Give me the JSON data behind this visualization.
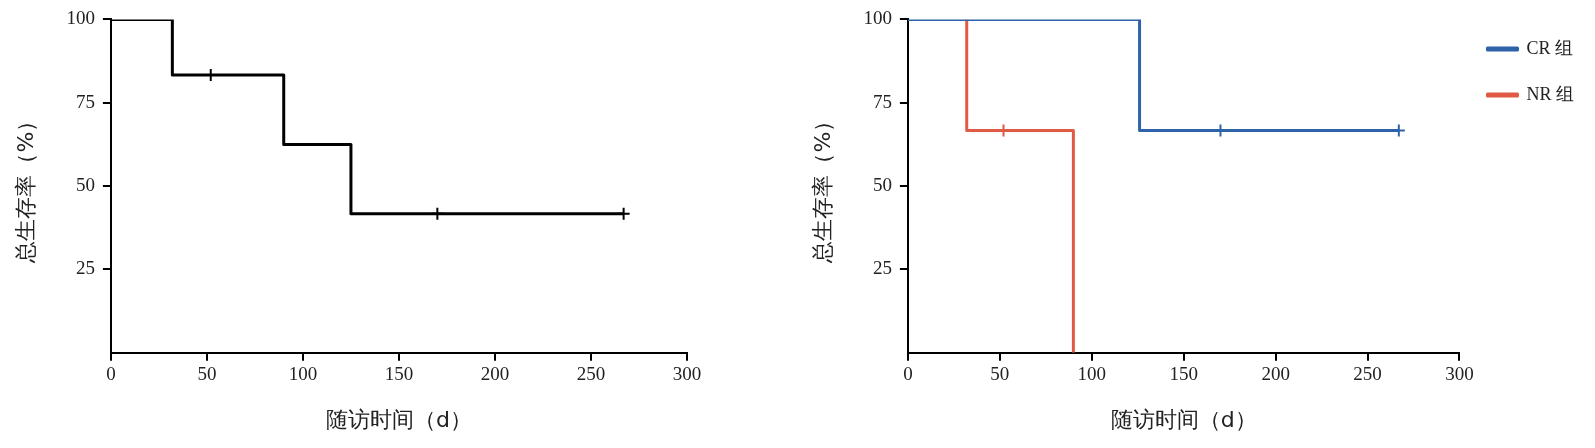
{
  "chart_data": [
    {
      "type": "step",
      "xlabel": "随访时间（d）",
      "ylabel": "总生存率（%）",
      "xlim": [
        0,
        300
      ],
      "xticks": [
        0,
        50,
        100,
        150,
        200,
        250,
        300
      ],
      "ylim": [
        0,
        100
      ],
      "yticks": [
        25,
        50,
        75,
        100
      ],
      "grid": false,
      "legend": false,
      "series": [
        {
          "color": "#000000",
          "x": [
            0,
            32,
            90,
            125,
            267
          ],
          "values": [
            100,
            83.3,
            62.5,
            41.7,
            41.7
          ]
        },
        {
          "type": "scatter",
          "marker": "cross",
          "color": "#000000",
          "x": [
            52,
            170,
            267
          ],
          "values": [
            83.3,
            41.7,
            41.7
          ]
        }
      ]
    },
    {
      "type": "step",
      "xlabel": "随访时间（d）",
      "ylabel": "总生存率（%）",
      "xlim": [
        0,
        300
      ],
      "xticks": [
        0,
        50,
        100,
        150,
        200,
        250,
        300
      ],
      "ylim": [
        0,
        100
      ],
      "yticks": [
        25,
        50,
        75,
        100
      ],
      "grid": false,
      "legend": "top right",
      "series": [
        {
          "name": "CR 组",
          "color": "#2e63a8",
          "x": [
            0,
            126,
            267
          ],
          "values": [
            100,
            66.7,
            66.7
          ]
        },
        {
          "name": "NR 组",
          "color": "#e05a45",
          "x": [
            32,
            32,
            90,
            90
          ],
          "values": [
            100,
            66.7,
            0,
            0
          ]
        },
        {
          "type": "scatter",
          "marker": "cross",
          "color": "#2e63a8",
          "x": [
            170,
            267
          ],
          "values": [
            66.7,
            66.7
          ]
        },
        {
          "type": "scatter",
          "marker": "cross",
          "color": "#e05a45",
          "x": [
            52
          ],
          "values": [
            66.7
          ]
        }
      ]
    }
  ]
}
